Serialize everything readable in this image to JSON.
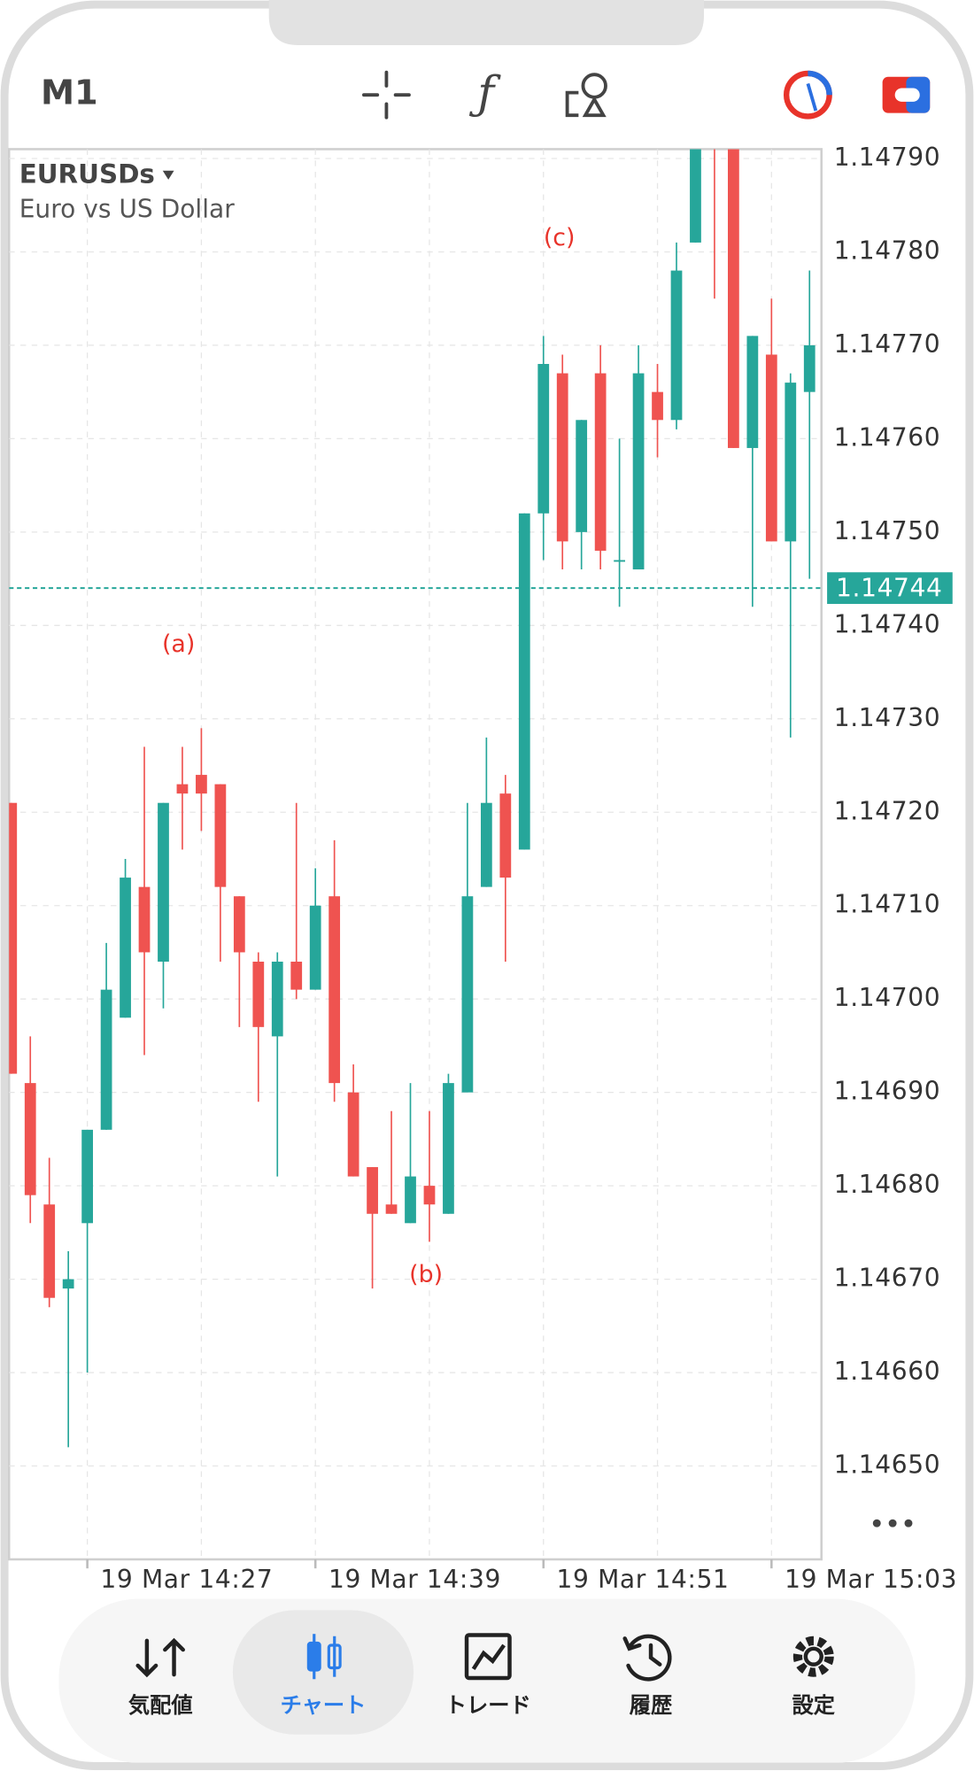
{
  "toolbar": {
    "timeframe": "M1"
  },
  "symbol": {
    "name": "EURUSDs",
    "description": "Euro vs US Dollar"
  },
  "chart_data": {
    "type": "candlestick",
    "categories": [
      null,
      null,
      null,
      null,
      "19 Mar 14:27",
      null,
      null,
      null,
      null,
      null,
      null,
      null,
      null,
      null,
      null,
      null,
      "19 Mar 14:39",
      null,
      null,
      null,
      null,
      null,
      null,
      null,
      null,
      null,
      null,
      null,
      "19 Mar 14:51",
      null,
      null,
      null,
      null,
      null,
      null,
      null,
      null,
      null,
      null,
      null,
      "19 Mar 15:03",
      null,
      null
    ],
    "open": [
      1.14721,
      1.14691,
      1.14678,
      1.14669,
      1.14676,
      1.14686,
      1.14698,
      1.14712,
      1.14704,
      1.14723,
      1.14724,
      1.14723,
      1.14711,
      1.14704,
      1.14696,
      1.14704,
      1.14701,
      1.14711,
      1.1469,
      1.14682,
      1.14678,
      1.14676,
      1.1468,
      1.14677,
      1.1469,
      1.14712,
      1.14722,
      1.14716,
      1.14752,
      1.14767,
      1.1475,
      1.14767,
      1.14747,
      1.14746,
      1.14765,
      1.14762,
      1.14781,
      1.14795,
      1.14792,
      1.14759,
      1.14769,
      1.14749,
      1.14765
    ],
    "high": [
      1.14721,
      1.14696,
      1.14683,
      1.14673,
      1.14686,
      1.14706,
      1.14715,
      1.14727,
      1.14721,
      1.14727,
      1.14729,
      1.14723,
      1.14711,
      1.14705,
      1.14705,
      1.14721,
      1.14714,
      1.14717,
      1.14693,
      1.14682,
      1.14688,
      1.14691,
      1.14688,
      1.14692,
      1.14721,
      1.14728,
      1.14724,
      1.14752,
      1.14771,
      1.14769,
      1.14762,
      1.1477,
      1.1476,
      1.1477,
      1.14768,
      1.14781,
      1.14792,
      1.14798,
      1.14795,
      1.14771,
      1.14775,
      1.14767,
      1.14778
    ],
    "low": [
      1.14692,
      1.14676,
      1.14667,
      1.14652,
      1.1466,
      1.14686,
      1.14698,
      1.14694,
      1.14699,
      1.14716,
      1.14718,
      1.14704,
      1.14697,
      1.14689,
      1.14681,
      1.147,
      1.14701,
      1.14689,
      1.14681,
      1.14669,
      1.14677,
      1.14676,
      1.14674,
      1.14677,
      1.1469,
      1.14712,
      1.14704,
      1.14716,
      1.14747,
      1.14746,
      1.14746,
      1.14746,
      1.14742,
      1.14746,
      1.14758,
      1.14761,
      1.14781,
      1.14775,
      1.14759,
      1.14742,
      1.14749,
      1.14728,
      1.14745
    ],
    "close": [
      1.14692,
      1.14679,
      1.14668,
      1.1467,
      1.14686,
      1.14701,
      1.14713,
      1.14705,
      1.14721,
      1.14722,
      1.14722,
      1.14712,
      1.14705,
      1.14697,
      1.14704,
      1.14701,
      1.1471,
      1.14691,
      1.14681,
      1.14677,
      1.14677,
      1.14681,
      1.14678,
      1.14691,
      1.14711,
      1.14721,
      1.14713,
      1.14752,
      1.14768,
      1.14749,
      1.14762,
      1.14748,
      1.14747,
      1.14767,
      1.14762,
      1.14778,
      1.14792,
      1.14792,
      1.14759,
      1.14771,
      1.14749,
      1.14766,
      1.1477
    ],
    "up_color": "#26a69a",
    "down_color": "#ef5350",
    "ylim": [
      1.1464,
      1.14791
    ],
    "yticks": [
      {
        "value": 1.1479,
        "label": "1.14790"
      },
      {
        "value": 1.1478,
        "label": "1.14780"
      },
      {
        "value": 1.1477,
        "label": "1.14770"
      },
      {
        "value": 1.1476,
        "label": "1.14760"
      },
      {
        "value": 1.1475,
        "label": "1.14750"
      },
      {
        "value": 1.1474,
        "label": "1.14740"
      },
      {
        "value": 1.1473,
        "label": "1.14730"
      },
      {
        "value": 1.1472,
        "label": "1.14720"
      },
      {
        "value": 1.1471,
        "label": "1.14710"
      },
      {
        "value": 1.147,
        "label": "1.14700"
      },
      {
        "value": 1.1469,
        "label": "1.14690"
      },
      {
        "value": 1.1468,
        "label": "1.14680"
      },
      {
        "value": 1.1467,
        "label": "1.14670"
      },
      {
        "value": 1.1466,
        "label": "1.14660"
      },
      {
        "value": 1.1465,
        "label": "1.14650"
      }
    ],
    "current_price": 1.14744,
    "annotations": [
      "(a)",
      "(b)",
      "(c)"
    ],
    "grid": true
  },
  "nav": {
    "items": [
      "気配値",
      "チャート",
      "トレード",
      "履歴",
      "設定"
    ],
    "active": 1
  }
}
